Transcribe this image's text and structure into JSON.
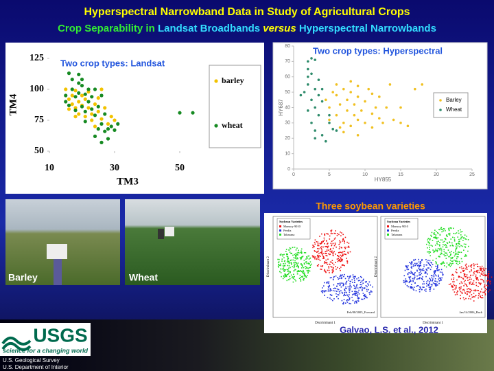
{
  "title": "Hyperspectral Narrowband Data in Study of Agricultural Crops",
  "subtitle_parts": [
    "Crop Separability in ",
    "Landsat Broadbands ",
    "versus",
    " Hyperspectral Narrowbands"
  ],
  "chart_data": [
    {
      "type": "scatter",
      "annotation": "Two crop types: Landsat",
      "x_label": "TM3",
      "y_label": "TM4",
      "xlim": [
        10,
        58
      ],
      "xticks": [
        10,
        30,
        50
      ],
      "ylim": [
        50,
        125
      ],
      "yticks": [
        50,
        75,
        100,
        125
      ],
      "grid": false,
      "legend": "right",
      "series": [
        {
          "name": "barley",
          "color": "#f2c200",
          "x": [
            15,
            16,
            17,
            17,
            18,
            18,
            19,
            19,
            20,
            20,
            21,
            21,
            22,
            22,
            23,
            23,
            24,
            24,
            25,
            25,
            26,
            27,
            28,
            29,
            30,
            26,
            18,
            16
          ],
          "values": [
            100,
            92,
            95,
            88,
            99,
            85,
            90,
            80,
            95,
            87,
            78,
            92,
            85,
            98,
            80,
            75,
            88,
            70,
            82,
            93,
            76,
            85,
            72,
            78,
            75,
            100,
            78,
            84
          ]
        },
        {
          "name": "wheat",
          "color": "#168a22",
          "x": [
            15,
            15,
            16,
            17,
            17,
            18,
            18,
            19,
            19,
            20,
            20,
            20,
            21,
            21,
            22,
            22,
            23,
            23,
            24,
            24,
            25,
            25,
            26,
            26,
            27,
            27,
            28,
            28,
            29,
            30,
            31,
            26,
            24,
            21,
            50,
            54,
            16,
            19
          ],
          "values": [
            90,
            95,
            87,
            100,
            108,
            94,
            83,
            97,
            112,
            103,
            86,
            108,
            96,
            74,
            100,
            90,
            84,
            94,
            79,
            100,
            68,
            86,
            72,
            95,
            66,
            80,
            68,
            60,
            70,
            67,
            72,
            57,
            62,
            82,
            81,
            81,
            113,
            105
          ]
        }
      ]
    },
    {
      "type": "scatter",
      "annotation": "Two crop types: Hyperspectral",
      "x_label": "HY855",
      "y_label": "HY687",
      "xlim": [
        0,
        25
      ],
      "xticks": [
        0,
        5,
        10,
        15,
        20,
        25
      ],
      "ylim": [
        0,
        80
      ],
      "yticks": [
        0,
        10,
        20,
        30,
        40,
        50,
        60,
        70,
        80
      ],
      "grid": false,
      "legend": "right",
      "series": [
        {
          "name": "Barley",
          "color": "#f0c020",
          "x": [
            4.5,
            5,
            5.5,
            6,
            6,
            6.5,
            7,
            7,
            7.5,
            7.5,
            8,
            8,
            8.5,
            8.5,
            9,
            9,
            9.5,
            10,
            10,
            10.5,
            11,
            11,
            11.5,
            12,
            12,
            12.5,
            13,
            13.5,
            14,
            15,
            15,
            16,
            17,
            18,
            7,
            6,
            8,
            9,
            11,
            5,
            6.5,
            9
          ],
          "values": [
            45,
            40,
            50,
            35,
            48,
            42,
            30,
            52,
            38,
            45,
            28,
            50,
            35,
            42,
            32,
            47,
            38,
            30,
            44,
            52,
            36,
            27,
            40,
            33,
            47,
            30,
            40,
            55,
            32,
            30,
            40,
            28,
            52,
            55,
            24,
            55,
            57,
            54,
            49,
            32,
            27,
            22
          ]
        },
        {
          "name": "Wheat",
          "color": "#2e8b6b",
          "x": [
            2,
            2.5,
            2,
            2.5,
            3,
            2,
            3,
            3.5,
            1.5,
            2.5,
            3,
            2,
            3.5,
            2.5,
            4,
            3,
            4,
            5,
            5.5,
            4.5,
            3,
            2,
            1,
            4,
            5,
            6,
            3.5
          ],
          "values": [
            70,
            72,
            65,
            62,
            71,
            55,
            52,
            58,
            50,
            45,
            40,
            38,
            35,
            30,
            44,
            25,
            22,
            30,
            26,
            18,
            20,
            60,
            48,
            52,
            35,
            25,
            48
          ]
        }
      ]
    }
  ],
  "photos": [
    "Barley",
    "Wheat"
  ],
  "soybean": {
    "title": "Three soybean varieties",
    "legend_title": "Soybean Varieties",
    "varieties": [
      "Monsoy 9010",
      "Perdiz",
      "Tabarana"
    ],
    "x_label": "Discriminant 1",
    "y_label": "Discriminant 2",
    "panel_notes": [
      "Feb/08/2005_Forward",
      "Jan/14/2006_Back"
    ],
    "citation": "Galvao, L.S. et al., 2012"
  },
  "logo": {
    "name": "USGS",
    "tagline": "science for a changing world",
    "org": [
      "U.S. Geological Survey",
      "U.S. Department of Interior"
    ]
  }
}
